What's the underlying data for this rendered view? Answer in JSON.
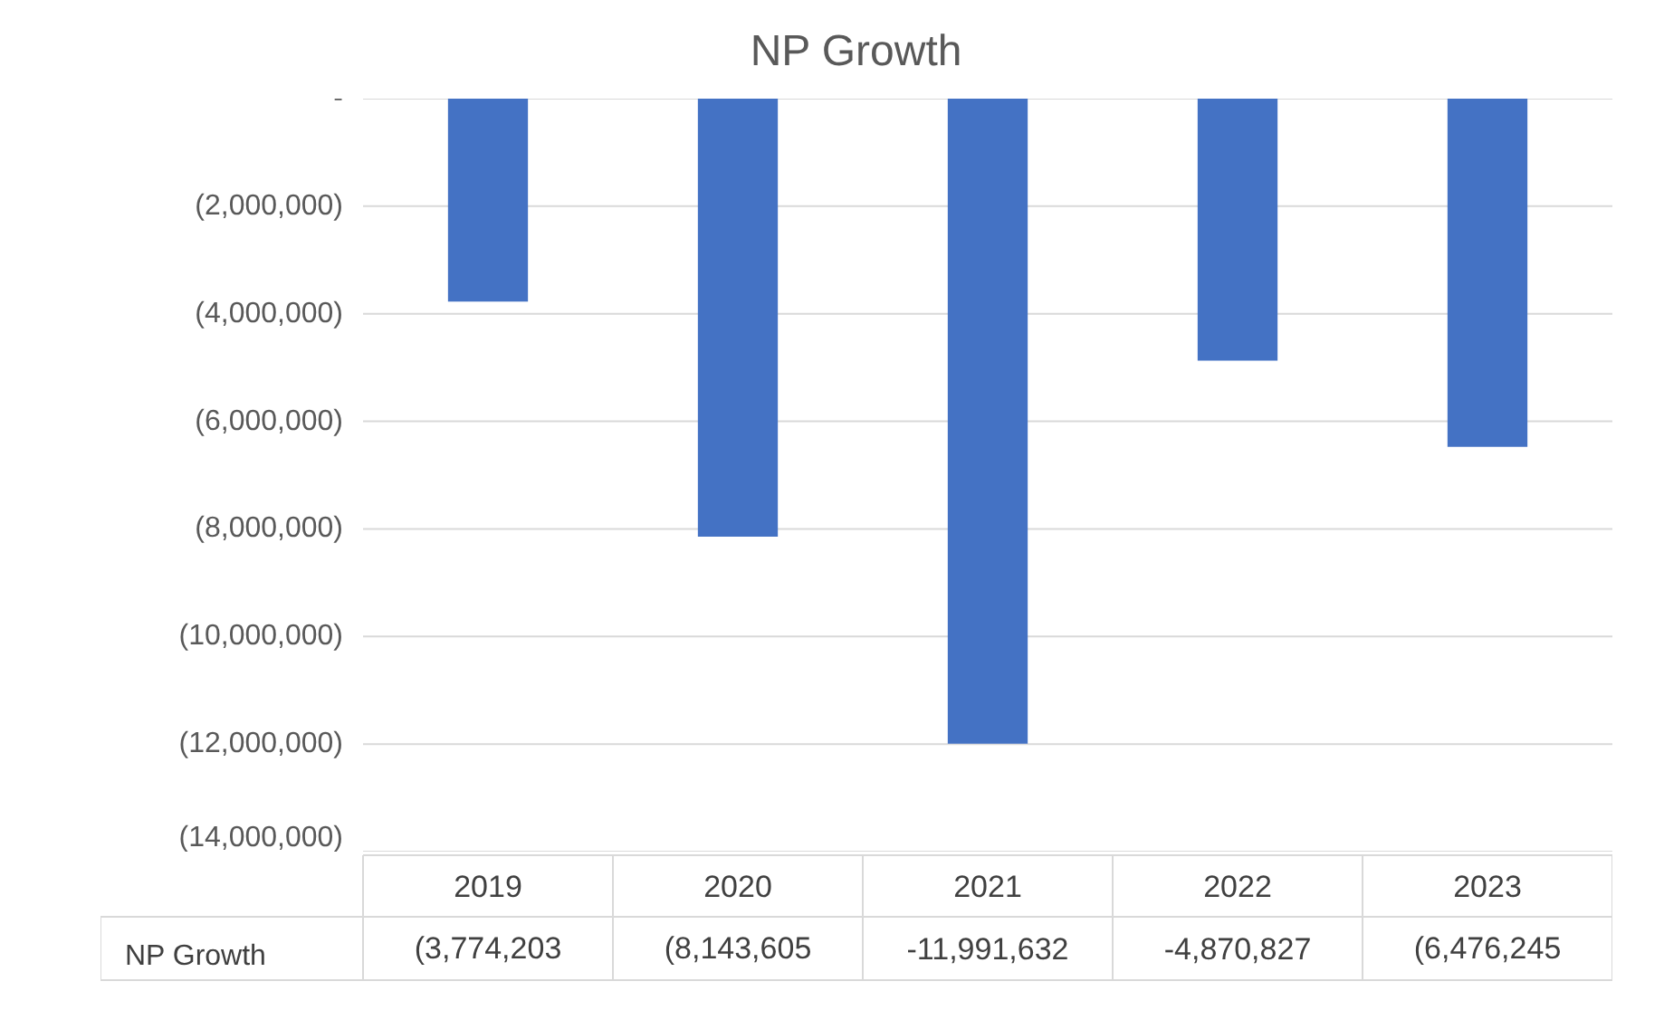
{
  "chart_data": {
    "type": "bar",
    "title": "NP Growth",
    "categories": [
      "2019",
      "2020",
      "2021",
      "2022",
      "2023"
    ],
    "series": [
      {
        "name": "NP Growth",
        "color": "#4472c4",
        "values": [
          -3774203,
          -8143605,
          -11991632,
          -4870827,
          -6476245
        ],
        "value_labels": [
          "(3,774,203",
          "(8,143,605",
          "-11,991,632",
          "-4,870,827",
          "(6,476,245"
        ]
      }
    ],
    "ylim": [
      -14000000,
      0
    ],
    "yticks": [
      {
        "value": 0,
        "label": "-"
      },
      {
        "value": -2000000,
        "label": "(2,000,000)"
      },
      {
        "value": -4000000,
        "label": "(4,000,000)"
      },
      {
        "value": -6000000,
        "label": "(6,000,000)"
      },
      {
        "value": -8000000,
        "label": "(8,000,000)"
      },
      {
        "value": -10000000,
        "label": "(10,000,000)"
      },
      {
        "value": -12000000,
        "label": "(12,000,000)"
      },
      {
        "value": -14000000,
        "label": "(14,000,000)"
      }
    ],
    "grid": "y",
    "legend": "bottom"
  }
}
